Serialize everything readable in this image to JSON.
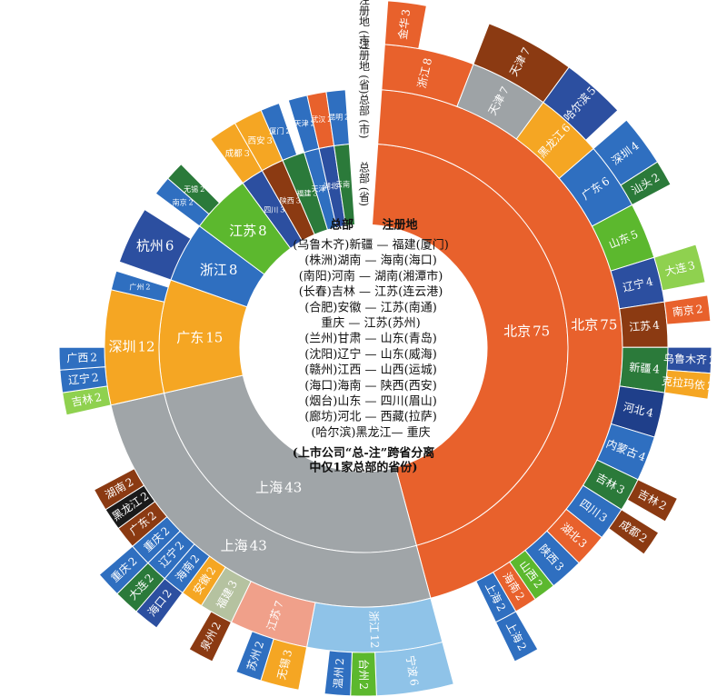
{
  "chart_data": {
    "type": "sunburst",
    "ring_labels": [
      "总部 (省)",
      "总部 (市)",
      "注册地 (省)",
      "注册地 (市)"
    ],
    "center_header": [
      "总部",
      "注册地"
    ],
    "center_rows": [
      "(乌鲁木齐)新疆 — 福建(厦门)",
      "(株洲)湖南 — 海南(海口)",
      "(南阳)河南 — 湖南(湘潭市)",
      "(长春)吉林 — 江苏(连云港)",
      "(合肥)安徽 — 江苏(南通)",
      "重庆 — 江苏(苏州)",
      "(兰州)甘肃 — 山东(青岛)",
      "(沈阳)辽宁 — 山东(威海)",
      "(赣州)江西 — 山西(运城)",
      "(海口)海南 — 陕西(西安)",
      "(烟台)山东 — 四川(眉山)",
      "(廊坊)河北 — 西藏(拉萨)",
      "(哈尔滨)黑龙江— 重庆"
    ],
    "center_note": [
      "(上市公司“总-注”跨省分离",
      "中仅1家总部的省份)"
    ],
    "nodes": [
      {
        "name": "北京",
        "value": 75,
        "color": "#e8612c",
        "children": [
          {
            "name": "北京",
            "value": 75,
            "color": "#e8612c",
            "children": [
              {
                "name": "浙江",
                "value": 8,
                "color": "#e8612c",
                "children": [
                  {
                    "name": "金华",
                    "value": 3,
                    "color": "#e8612c"
                  }
                ]
              },
              {
                "name": "天津",
                "value": 7,
                "color": "#9ea3a6",
                "children": [
                  {
                    "name": "天津",
                    "value": 7,
                    "color": "#8b3a12"
                  }
                ]
              },
              {
                "name": "黑龙江",
                "value": 6,
                "color": "#f5a623",
                "children": [
                  {
                    "name": "哈尔滨",
                    "value": 5,
                    "color": "#2c4fa0"
                  }
                ]
              },
              {
                "name": "广东",
                "value": 6,
                "color": "#2f6fc0",
                "children": [
                  {
                    "name": "深圳",
                    "value": 4,
                    "color": "#2f6fc0"
                  },
                  {
                    "name": "汕头",
                    "value": 2,
                    "color": "#2b7a3a"
                  }
                ]
              },
              {
                "name": "山东",
                "value": 5,
                "color": "#5cb82e"
              },
              {
                "name": "辽宁",
                "value": 4,
                "color": "#2c4fa0",
                "children": [
                  {
                    "name": "大连",
                    "value": 3,
                    "color": "#8fd14f"
                  }
                ]
              },
              {
                "name": "江苏",
                "value": 4,
                "color": "#8b3a12",
                "children": [
                  {
                    "name": "南京",
                    "value": 2,
                    "color": "#e8612c"
                  }
                ]
              },
              {
                "name": "新疆",
                "value": 4,
                "color": "#2b7a3a",
                "children": [
                  {
                    "name": "乌鲁木齐",
                    "value": 2,
                    "color": "#2c4fa0"
                  },
                  {
                    "name": "克拉玛依",
                    "value": 2,
                    "color": "#f5a623"
                  }
                ]
              },
              {
                "name": "河北",
                "value": 4,
                "color": "#1f3f8a"
              },
              {
                "name": "内蒙古",
                "value": 4,
                "color": "#2f6fc0"
              },
              {
                "name": "吉林",
                "value": 3,
                "color": "#2b7a3a",
                "children": [
                  {
                    "name": "吉林",
                    "value": 2,
                    "color": "#8b3a12"
                  }
                ]
              },
              {
                "name": "四川",
                "value": 3,
                "color": "#2f6fc0",
                "children": [
                  {
                    "name": "成都",
                    "value": 2,
                    "color": "#8b3a12"
                  }
                ]
              },
              {
                "name": "湖北",
                "value": 3,
                "color": "#e8612c"
              },
              {
                "name": "陕西",
                "value": 3,
                "color": "#2f6fc0"
              },
              {
                "name": "山西",
                "value": 2,
                "color": "#5cb82e"
              },
              {
                "name": "海南",
                "value": 2,
                "color": "#e8612c"
              },
              {
                "name": "上海",
                "value": 2,
                "color": "#2f6fc0",
                "children": [
                  {
                    "name": "上海",
                    "value": 2,
                    "color": "#2f6fc0"
                  }
                ]
              }
            ]
          }
        ]
      },
      {
        "name": "上海",
        "value": 43,
        "color": "#a0a5a8",
        "children": [
          {
            "name": "上海",
            "value": 43,
            "color": "#a0a5a8",
            "children": [
              {
                "name": "浙江",
                "value": 12,
                "color": "#8fc3e8",
                "children": [
                  {
                    "name": "宁波",
                    "value": 6,
                    "color": "#8fc3e8"
                  },
                  {
                    "name": "台州",
                    "value": 2,
                    "color": "#5cb82e"
                  },
                  {
                    "name": "温州",
                    "value": 2,
                    "color": "#2f6fc0"
                  }
                ]
              },
              {
                "name": "江苏",
                "value": 7,
                "color": "#f0a08a",
                "children": [
                  {
                    "name": "无锡",
                    "value": 3,
                    "color": "#f5a623"
                  },
                  {
                    "name": "苏州",
                    "value": 2,
                    "color": "#2f6fc0"
                  }
                ]
              },
              {
                "name": "福建",
                "value": 3,
                "color": "#b5c2a0",
                "children": [
                  {
                    "name": "泉州",
                    "value": 2,
                    "color": "#8b3a12"
                  }
                ]
              },
              {
                "name": "安徽",
                "value": 2,
                "color": "#f5a623"
              },
              {
                "name": "海南",
                "value": 2,
                "color": "#2f6fc0",
                "children": [
                  {
                    "name": "海口",
                    "value": 2,
                    "color": "#2c4fa0"
                  }
                ]
              },
              {
                "name": "辽宁",
                "value": 2,
                "color": "#2f6fc0",
                "children": [
                  {
                    "name": "大连",
                    "value": 2,
                    "color": "#2b7a3a"
                  }
                ]
              },
              {
                "name": "重庆",
                "value": 2,
                "color": "#2f6fc0",
                "children": [
                  {
                    "name": "重庆",
                    "value": 2,
                    "color": "#2f6fc0"
                  }
                ]
              },
              {
                "name": "广东",
                "value": 2,
                "color": "#8b3a12"
              },
              {
                "name": "黑龙江",
                "value": 2,
                "color": "#1a1a1a"
              },
              {
                "name": "湖南",
                "value": 2,
                "color": "#8b3a12"
              }
            ]
          }
        ]
      },
      {
        "name": "广东",
        "value": 15,
        "color": "#f5a623",
        "children": [
          {
            "name": "深圳",
            "value": 12,
            "color": "#f5a623",
            "children": [
              {
                "name": "吉林",
                "value": 2,
                "color": "#8fd14f"
              },
              {
                "name": "辽宁",
                "value": 2,
                "color": "#2f6fc0"
              },
              {
                "name": "广西",
                "value": 2,
                "color": "#2f6fc0"
              }
            ]
          },
          {
            "name": "广州",
            "value": 2,
            "color": "#2f6fc0"
          }
        ]
      },
      {
        "name": "浙江",
        "value": 8,
        "color": "#2f6fc0",
        "children": [
          {
            "name": "杭州",
            "value": 6,
            "color": "#2c4fa0"
          }
        ]
      },
      {
        "name": "江苏",
        "value": 8,
        "color": "#5cb82e",
        "children": [
          {
            "name": "南京",
            "value": 2,
            "color": "#2f6fc0"
          },
          {
            "name": "无锡",
            "value": 2,
            "color": "#2b7a3a"
          }
        ]
      },
      {
        "name": "四川",
        "value": 3,
        "color": "#2c4fa0",
        "children": [
          {
            "name": "成都",
            "value": 3,
            "color": "#f5a623"
          }
        ]
      },
      {
        "name": "陕西",
        "value": 3,
        "color": "#8b3a12",
        "children": [
          {
            "name": "西安",
            "value": 3,
            "color": "#f5a623"
          }
        ]
      },
      {
        "name": "福建",
        "value": 3,
        "color": "#2b7a3a",
        "children": [
          {
            "name": "厦门",
            "value": 2,
            "color": "#2f6fc0"
          }
        ]
      },
      {
        "name": "天津",
        "value": 2,
        "color": "#2f6fc0",
        "children": [
          {
            "name": "天津",
            "value": 2,
            "color": "#2f6fc0"
          }
        ]
      },
      {
        "name": "湖北",
        "value": 2,
        "color": "#2c4fa0",
        "children": [
          {
            "name": "武汉",
            "value": 2,
            "color": "#e8612c"
          }
        ]
      },
      {
        "name": "云南",
        "value": 2,
        "color": "#2b7a3a",
        "children": [
          {
            "name": "昆明",
            "value": 2,
            "color": "#2f6fc0"
          }
        ]
      }
    ]
  }
}
